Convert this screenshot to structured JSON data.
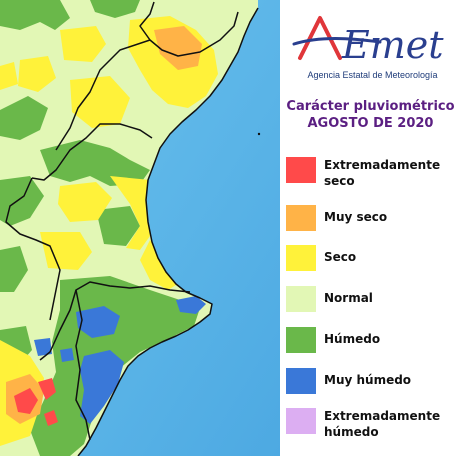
{
  "logo": {
    "wordmark": "AEmet",
    "agency": "Agencia Estatal de Meteorología"
  },
  "title": {
    "line1": "Carácter pluviométrico",
    "line2": "AGOSTO DE 2020"
  },
  "legend": [
    {
      "label_line1": "Extremadamente",
      "label_line2": "seco",
      "color": "#ff4a4a"
    },
    {
      "label_line1": "Muy seco",
      "label_line2": "",
      "color": "#ffb347"
    },
    {
      "label_line1": "Seco",
      "label_line2": "",
      "color": "#fff23a"
    },
    {
      "label_line1": "Normal",
      "label_line2": "",
      "color": "#e2f7b5"
    },
    {
      "label_line1": "Húmedo",
      "label_line2": "",
      "color": "#6ab84a"
    },
    {
      "label_line1": "Muy húmedo",
      "label_line2": "",
      "color": "#3a78d8"
    },
    {
      "label_line1": "Extremadamente",
      "label_line2": "húmedo",
      "color": "#dcaef2"
    }
  ],
  "colors": {
    "sea": "#5ab8ea",
    "land_normal": "#e2f7b5",
    "border": "#111111",
    "title": "#5b1f82",
    "logo_red": "#e0363a",
    "logo_blue": "#2a3f8f"
  }
}
